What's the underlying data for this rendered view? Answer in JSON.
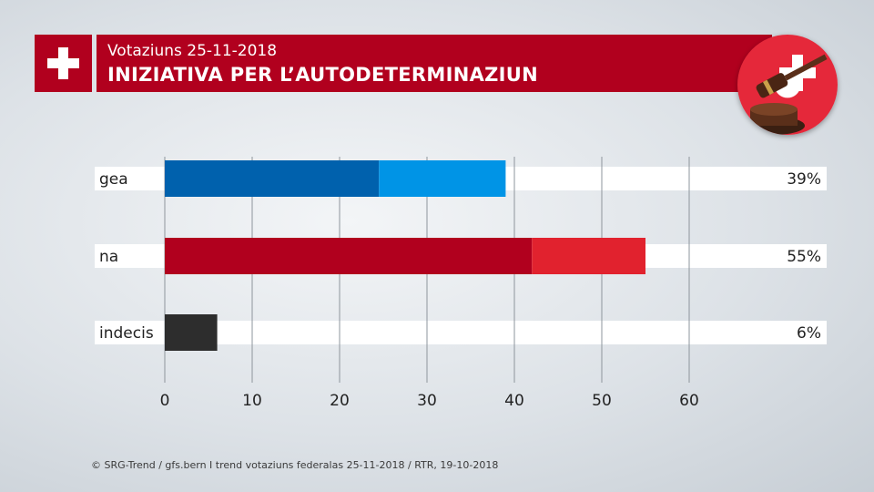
{
  "header": {
    "date_line": "Votaziuns 25-11-2018",
    "title": "INIZIATIVA PER L’AUTODETERMINAZIUN"
  },
  "icons": {
    "flag": "swiss-cross-icon",
    "badge": "gavel-icon"
  },
  "footer": {
    "source": "© SRG-Trend / gfs.bern I trend votaziuns federalas 25-11-2018 / RTR, 19-10-2018"
  },
  "chart_data": {
    "type": "bar",
    "orientation": "horizontal",
    "categories": [
      "gea",
      "na",
      "indecis"
    ],
    "values": [
      39,
      55,
      6
    ],
    "value_labels": [
      "39%",
      "55%",
      "6%"
    ],
    "segments": [
      [
        24.5,
        14.5
      ],
      [
        42,
        13
      ],
      [
        6,
        0
      ]
    ],
    "colors": {
      "gea": [
        "#0061ad",
        "#0094e6"
      ],
      "na": [
        "#b1001e",
        "#e1222e"
      ],
      "indecis": [
        "#2d2d2d",
        "#2d2d2d"
      ]
    },
    "xlim": [
      0,
      60
    ],
    "x_ticks": [
      0,
      10,
      20,
      30,
      40,
      50,
      60
    ],
    "grid": true
  }
}
